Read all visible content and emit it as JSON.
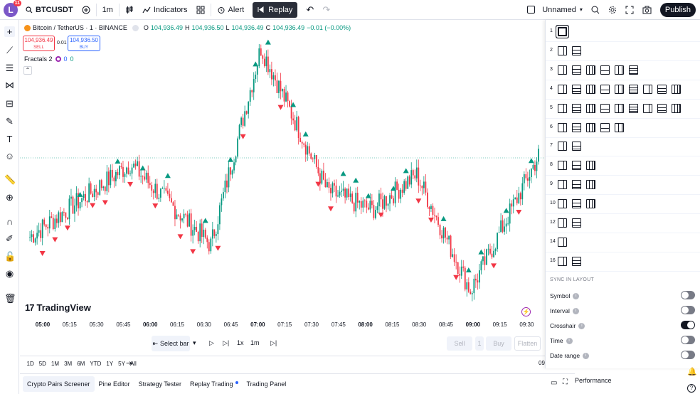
{
  "header": {
    "avatar_letter": "L",
    "avatar_badge": "11",
    "symbol": "BTCUSDT",
    "interval": "1m",
    "indicators": "Indicators",
    "alert": "Alert",
    "replay": "Replay",
    "layout_name": "Unnamed",
    "publish": "Publish"
  },
  "legend": {
    "title": "Bitcoin / TetherUS · 1 · BINANCE",
    "o_label": "O",
    "o": "104,936.49",
    "h_label": "H",
    "h": "104,936.50",
    "l_label": "L",
    "l": "104,936.49",
    "c_label": "C",
    "c": "104,936.49",
    "change": "−0.01 (−0.00%)",
    "sell_price": "104,936.49",
    "sell_label": "SELL",
    "spread": "0.01",
    "buy_price": "104,936.50",
    "buy_label": "BUY",
    "indicator": "Fractals 2",
    "ind_v1": "0",
    "ind_v2": "0"
  },
  "watermark": "TradingView",
  "time_ticks": [
    {
      "label": "05:00",
      "bold": true
    },
    {
      "label": "05:15",
      "bold": false
    },
    {
      "label": "05:30",
      "bold": false
    },
    {
      "label": "05:45",
      "bold": false
    },
    {
      "label": "06:00",
      "bold": true
    },
    {
      "label": "06:15",
      "bold": false
    },
    {
      "label": "06:30",
      "bold": false
    },
    {
      "label": "06:45",
      "bold": false
    },
    {
      "label": "07:00",
      "bold": true
    },
    {
      "label": "07:15",
      "bold": false
    },
    {
      "label": "07:30",
      "bold": false
    },
    {
      "label": "07:45",
      "bold": false
    },
    {
      "label": "08:00",
      "bold": true
    },
    {
      "label": "08:15",
      "bold": false
    },
    {
      "label": "08:30",
      "bold": false
    },
    {
      "label": "08:45",
      "bold": false
    },
    {
      "label": "09:00",
      "bold": true
    },
    {
      "label": "09:15",
      "bold": false
    },
    {
      "label": "09:30",
      "bold": false
    }
  ],
  "replay_controls": {
    "select_bar": "Select bar",
    "speed": "1x",
    "interval": "1m",
    "sell": "Sell",
    "qty": "1",
    "buy": "Buy",
    "flatten": "Flatten"
  },
  "ranges": [
    "1D",
    "5D",
    "1M",
    "3M",
    "6M",
    "YTD",
    "1Y",
    "5Y",
    "All"
  ],
  "axis_time_clip": "09",
  "bottom_tabs": [
    "Crypto Pairs Screener",
    "Pine Editor",
    "Strategy Tester",
    "Replay Trading",
    "Trading Panel"
  ],
  "layout_panel": {
    "rows": [
      {
        "n": "1",
        "count": 1
      },
      {
        "n": "2",
        "count": 2
      },
      {
        "n": "3",
        "count": 6
      },
      {
        "n": "4",
        "count": 9
      },
      {
        "n": "5",
        "count": 9
      },
      {
        "n": "6",
        "count": 5
      },
      {
        "n": "7",
        "count": 2
      },
      {
        "n": "8",
        "count": 3
      },
      {
        "n": "9",
        "count": 3
      },
      {
        "n": "10",
        "count": 3
      },
      {
        "n": "12",
        "count": 2
      },
      {
        "n": "14",
        "count": 1
      },
      {
        "n": "16",
        "count": 2
      }
    ],
    "sync_title": "SYNC IN LAYOUT",
    "toggles": [
      {
        "label": "Symbol",
        "on": false
      },
      {
        "label": "Interval",
        "on": false
      },
      {
        "label": "Crosshair",
        "on": true
      },
      {
        "label": "Time",
        "on": false
      },
      {
        "label": "Date range",
        "on": false
      }
    ]
  },
  "performance": "Performance",
  "colors": {
    "up": "#089981",
    "down": "#f23645",
    "accent": "#2962ff"
  },
  "chart_data": {
    "type": "candlestick",
    "x_range": [
      "04:45",
      "09:35"
    ],
    "tick_interval_minutes": 15,
    "markers": "fractal up (teal triangles above highs) and fractal down (red triangles below lows)",
    "close_path": [
      {
        "t": "04:49",
        "price_level": 0.25
      },
      {
        "t": "05:45",
        "price_level": 0.52
      },
      {
        "t": "06:30",
        "price_level": 0.22
      },
      {
        "t": "06:58",
        "price_level": 0.95
      },
      {
        "t": "07:35",
        "price_level": 0.42
      },
      {
        "t": "08:00",
        "price_level": 0.35
      },
      {
        "t": "08:25",
        "price_level": 0.48
      },
      {
        "t": "08:55",
        "price_level": 0.05
      },
      {
        "t": "09:33",
        "price_level": 0.55
      }
    ]
  }
}
